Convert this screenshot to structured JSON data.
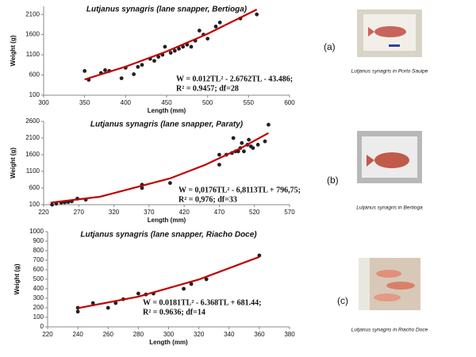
{
  "chart_data": [
    {
      "type": "scatter",
      "title": "Lutjanus synagris (lane snapper, Bertioga)",
      "x_label": "Length (mm)",
      "y_label": "Weight (g)",
      "equation": "W = 0.012TL² - 2.6762TL - 43.486;",
      "stats": "R² = 0.9457; df=28",
      "panel_label": "(a)",
      "photo_caption": "Lutjanus synagris in Porto Sauipe",
      "xlim": [
        300,
        600
      ],
      "xticks": [
        300,
        350,
        400,
        450,
        500,
        550,
        600
      ],
      "ylim": [
        100,
        2300
      ],
      "yticks": [
        100,
        600,
        1100,
        1600,
        2100
      ],
      "series": [
        {
          "color": "#222222",
          "x": [
            350,
            355,
            370,
            375,
            380,
            395,
            400,
            410,
            415,
            420,
            430,
            435,
            440,
            445,
            448,
            455,
            460,
            465,
            470,
            475,
            480,
            485,
            490,
            495,
            500,
            510,
            515,
            540,
            560
          ],
          "values": [
            700,
            480,
            650,
            720,
            700,
            520,
            780,
            620,
            800,
            850,
            1000,
            950,
            1050,
            1100,
            1300,
            1150,
            1200,
            1250,
            1300,
            1350,
            1300,
            1450,
            1700,
            1600,
            1500,
            1800,
            1900,
            2000,
            2100
          ]
        }
      ],
      "trend": {
        "color": "#c00000",
        "x": [
          350,
          400,
          450,
          500,
          560
        ],
        "values": [
          490,
          807,
          1183,
          1619,
          2221
        ]
      }
    },
    {
      "type": "scatter",
      "title": "Lutjanus synagris (lane snapper, Paraty)",
      "x_label": "Length (mm)",
      "y_label": "Weight (g)",
      "equation": "W = 0,0176TL² - 6,8113TL + 796,75;",
      "stats": "R² = 0,976; df=33",
      "panel_label": "(b)",
      "photo_caption": "Lutjanus synagris in Bertioga",
      "xlim": [
        220,
        570
      ],
      "xticks": [
        220,
        270,
        320,
        370,
        420,
        470,
        520,
        570
      ],
      "ylim": [
        100,
        2600
      ],
      "yticks": [
        100,
        600,
        1100,
        1600,
        2100,
        2600
      ],
      "series": [
        {
          "color": "#222222",
          "x": [
            232,
            238,
            245,
            250,
            255,
            260,
            268,
            280,
            360,
            360,
            400,
            470,
            470,
            480,
            488,
            490,
            493,
            497,
            500,
            502,
            505,
            510,
            512,
            515,
            518,
            525,
            535,
            540
          ],
          "values": [
            100,
            130,
            160,
            170,
            180,
            200,
            280,
            250,
            600,
            700,
            750,
            1300,
            1600,
            1600,
            1650,
            2100,
            1700,
            1700,
            1800,
            1950,
            1700,
            1900,
            2050,
            1850,
            1800,
            1900,
            2000,
            2500
          ]
        }
      ],
      "trend": {
        "color": "#c00000",
        "x": [
          230,
          300,
          400,
          450,
          500,
          540
        ],
        "values": [
          161,
          338,
          889,
          1296,
          1791,
          2251
        ]
      }
    },
    {
      "type": "scatter",
      "title": "Lutjanus synagris (lane snapper, Riacho Doce)",
      "x_label": "Length (mm)",
      "y_label": "Weight (g)",
      "equation": "W = 0.0181TL² - 6.368TL + 681.44;",
      "stats": "R² = 0.9636; df=14",
      "panel_label": "(c)",
      "photo_caption": "Lutjanus synagris in Riacho Doce",
      "xlim": [
        220,
        380
      ],
      "xticks": [
        220,
        240,
        260,
        280,
        300,
        320,
        340,
        360,
        380
      ],
      "ylim": [
        0,
        1000
      ],
      "yticks": [
        0,
        100,
        200,
        300,
        400,
        500,
        600,
        700,
        800,
        900,
        1000
      ],
      "series": [
        {
          "color": "#222222",
          "x": [
            240,
            240,
            250,
            260,
            265,
            270,
            280,
            285,
            290,
            310,
            315,
            325,
            360
          ],
          "values": [
            160,
            200,
            250,
            200,
            250,
            290,
            350,
            340,
            350,
            400,
            450,
            500,
            750
          ]
        }
      ],
      "trend": {
        "color": "#c00000",
        "x": [
          240,
          280,
          320,
          360
        ],
        "values": [
          196,
          317,
          497,
          735
        ]
      }
    }
  ]
}
